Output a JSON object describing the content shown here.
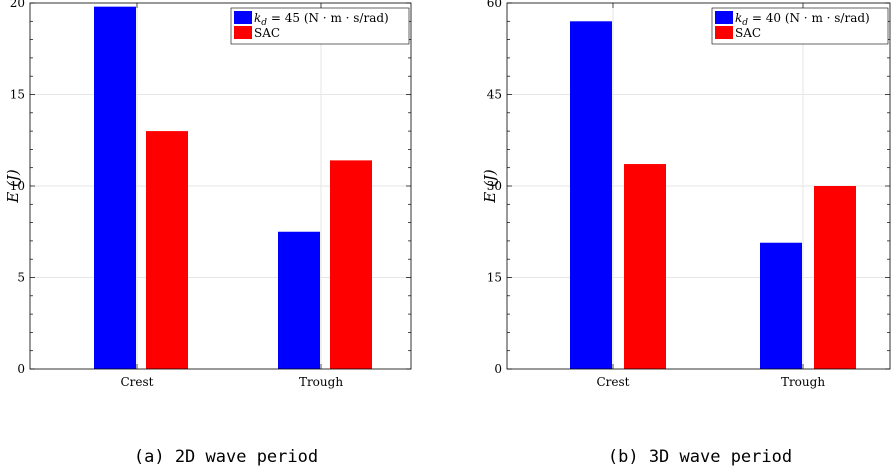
{
  "chart_data": [
    {
      "type": "bar",
      "categories": [
        "Crest",
        "Trough"
      ],
      "series": [
        {
          "name": "k_d = 45 (N·m·s/rad)",
          "values": [
            19.8,
            7.5
          ],
          "color": "#0000ff"
        },
        {
          "name": "SAC",
          "values": [
            13.0,
            11.4
          ],
          "color": "#ff0000"
        }
      ],
      "legend": [
        {
          "main": "k",
          "sub": "d",
          "rest": " = 45 (N · m · s/rad)"
        },
        {
          "main": "SAC",
          "sub": "",
          "rest": ""
        }
      ],
      "ylabel": "E (J)",
      "ylim": [
        0,
        20
      ],
      "yticks": [
        "0",
        "5",
        "10",
        "15",
        "20"
      ],
      "grid": true,
      "legend_position": "top-right",
      "caption": "(a) 2D wave period"
    },
    {
      "type": "bar",
      "categories": [
        "Crest",
        "Trough"
      ],
      "series": [
        {
          "name": "k_d = 40 (N·m·s/rad)",
          "values": [
            57.0,
            20.7
          ],
          "color": "#0000ff"
        },
        {
          "name": "SAC",
          "values": [
            33.6,
            30.0
          ],
          "color": "#ff0000"
        }
      ],
      "legend": [
        {
          "main": "k",
          "sub": "d",
          "rest": " = 40 (N · m · s/rad)"
        },
        {
          "main": "SAC",
          "sub": "",
          "rest": ""
        }
      ],
      "ylabel": "E (J)",
      "ylim": [
        0,
        60
      ],
      "yticks": [
        "0",
        "15",
        "30",
        "45",
        "60"
      ],
      "grid": true,
      "legend_position": "top-right",
      "caption": "(b) 3D wave period"
    }
  ]
}
